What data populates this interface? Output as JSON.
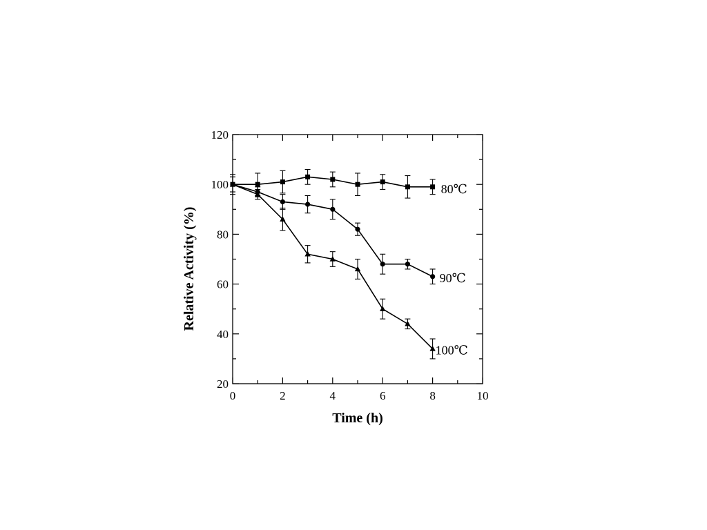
{
  "chart_data": {
    "type": "line",
    "title": "",
    "xlabel": "Time (h)",
    "ylabel": "Relative Activity (%)",
    "xlim": [
      0,
      10
    ],
    "ylim": [
      20,
      120
    ],
    "xticks": [
      0,
      2,
      4,
      6,
      8,
      10
    ],
    "yticks": [
      20,
      40,
      60,
      80,
      100,
      120
    ],
    "grid": false,
    "legend": "none",
    "x": [
      0,
      1,
      2,
      3,
      4,
      5,
      6,
      7,
      8
    ],
    "series": [
      {
        "name": "80℃",
        "marker": "square",
        "values": [
          100,
          100,
          101,
          103,
          102,
          100,
          101,
          99,
          99
        ],
        "errors": [
          4,
          4.5,
          4.5,
          3,
          3,
          4.5,
          3,
          4.5,
          3
        ]
      },
      {
        "name": "90℃",
        "marker": "circle",
        "values": [
          100,
          97,
          93,
          92,
          90,
          82,
          68,
          68,
          63
        ],
        "errors": [
          3,
          2,
          3,
          3.5,
          4,
          2.5,
          4,
          2,
          3
        ]
      },
      {
        "name": "100℃",
        "marker": "triangle",
        "values": [
          100,
          96,
          86,
          72,
          70,
          66,
          50,
          44,
          34
        ],
        "errors": [
          3,
          2,
          4.5,
          3.5,
          3,
          4,
          4,
          2,
          4
        ]
      }
    ]
  }
}
